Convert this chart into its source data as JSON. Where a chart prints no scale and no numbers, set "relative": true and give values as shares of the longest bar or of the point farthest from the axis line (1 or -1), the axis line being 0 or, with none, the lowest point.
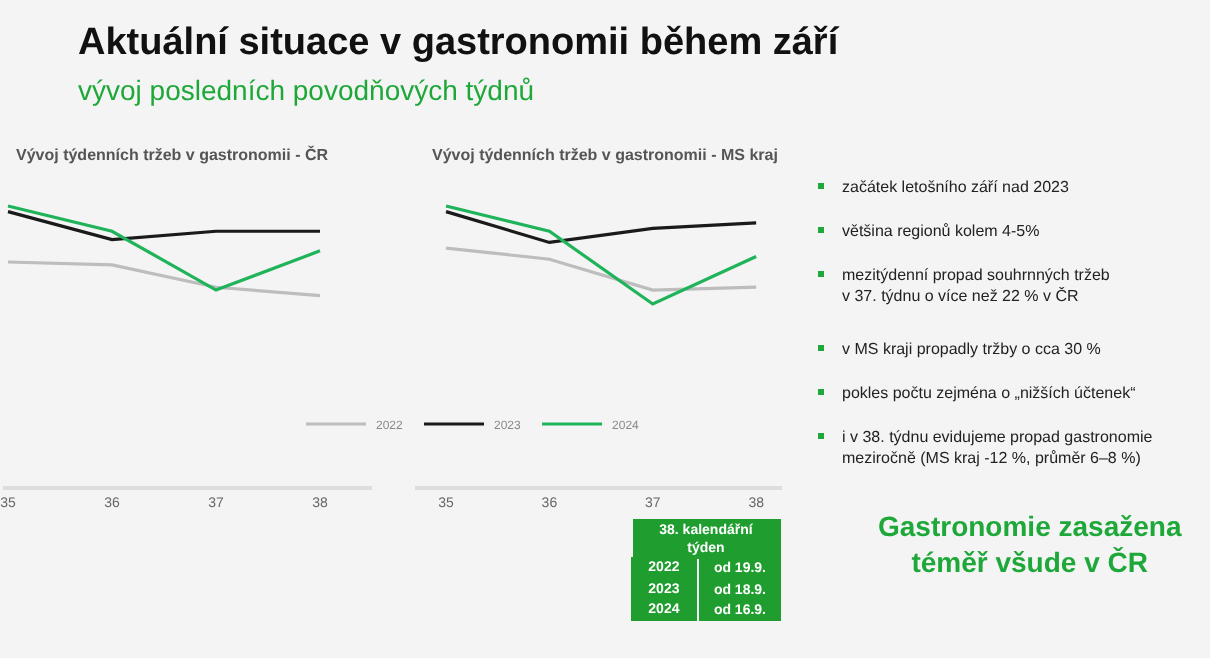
{
  "chart_data": [
    {
      "type": "other",
      "title": "Aktuální situace v gastronomii během září",
      "subtitle": "vývoj posledních povodňových týdnů"
    },
    {
      "type": "line",
      "title": "Vývoj týdenních tržeb v gastronomii - ČR",
      "relative": true,
      "categories": [
        "35",
        "36",
        "37",
        "38"
      ],
      "legend": "bottom right",
      "grid": false,
      "marker": "none",
      "line_style": "solid",
      "series": [
        {
          "name": "2022",
          "color": "#bdbdbd",
          "values": [
            0.8,
            0.79,
            0.71,
            0.68
          ]
        },
        {
          "name": "2023",
          "color": "#1a1a1a",
          "values": [
            0.98,
            0.88,
            0.91,
            0.91
          ]
        },
        {
          "name": "2024",
          "color": "#1fb35a",
          "values": [
            1,
            0.91,
            0.7,
            0.84
          ]
        }
      ]
    },
    {
      "type": "line",
      "title": "Vývoj týdenních tržeb v gastronomii - MS kraj",
      "relative": true,
      "categories": [
        "35",
        "36",
        "37",
        "38"
      ],
      "legend": false,
      "grid": false,
      "marker": "none",
      "line_style": "solid",
      "series": [
        {
          "color": "#bdbdbd",
          "values": [
            0.85,
            0.81,
            0.7,
            0.71
          ]
        },
        {
          "color": "#1a1a1a",
          "values": [
            0.98,
            0.87,
            0.92,
            0.94
          ]
        },
        {
          "color": "#1fb35a",
          "values": [
            1,
            0.91,
            0.65,
            0.82
          ]
        }
      ]
    },
    {
      "type": "other",
      "annotations": [
        "začátek letošního září nad 2023",
        "většina regionů kolem 4-5%",
        "mezitýdenní propad souhrnných tržeb\nv 37. týdnu o více než 22 % v ČR",
        "v MS kraji propadly tržby o cca 30 %",
        "pokles počtu zejména o „nižších účtenek“",
        "i v 38. týdnu evidujeme propad gastronomie\nmeziročně (MS kraj -12 %, průměr 6–8 %)"
      ]
    },
    {
      "type": "other",
      "title": "38. kalendářní\ntýden",
      "annotations": [
        "2022",
        "od 19.9.",
        "2023",
        "od 18.9.",
        "2024",
        "od 16.9."
      ]
    },
    {
      "type": "other",
      "title": "Gastronomie zasažena\ntéměř všude v ČR"
    }
  ]
}
